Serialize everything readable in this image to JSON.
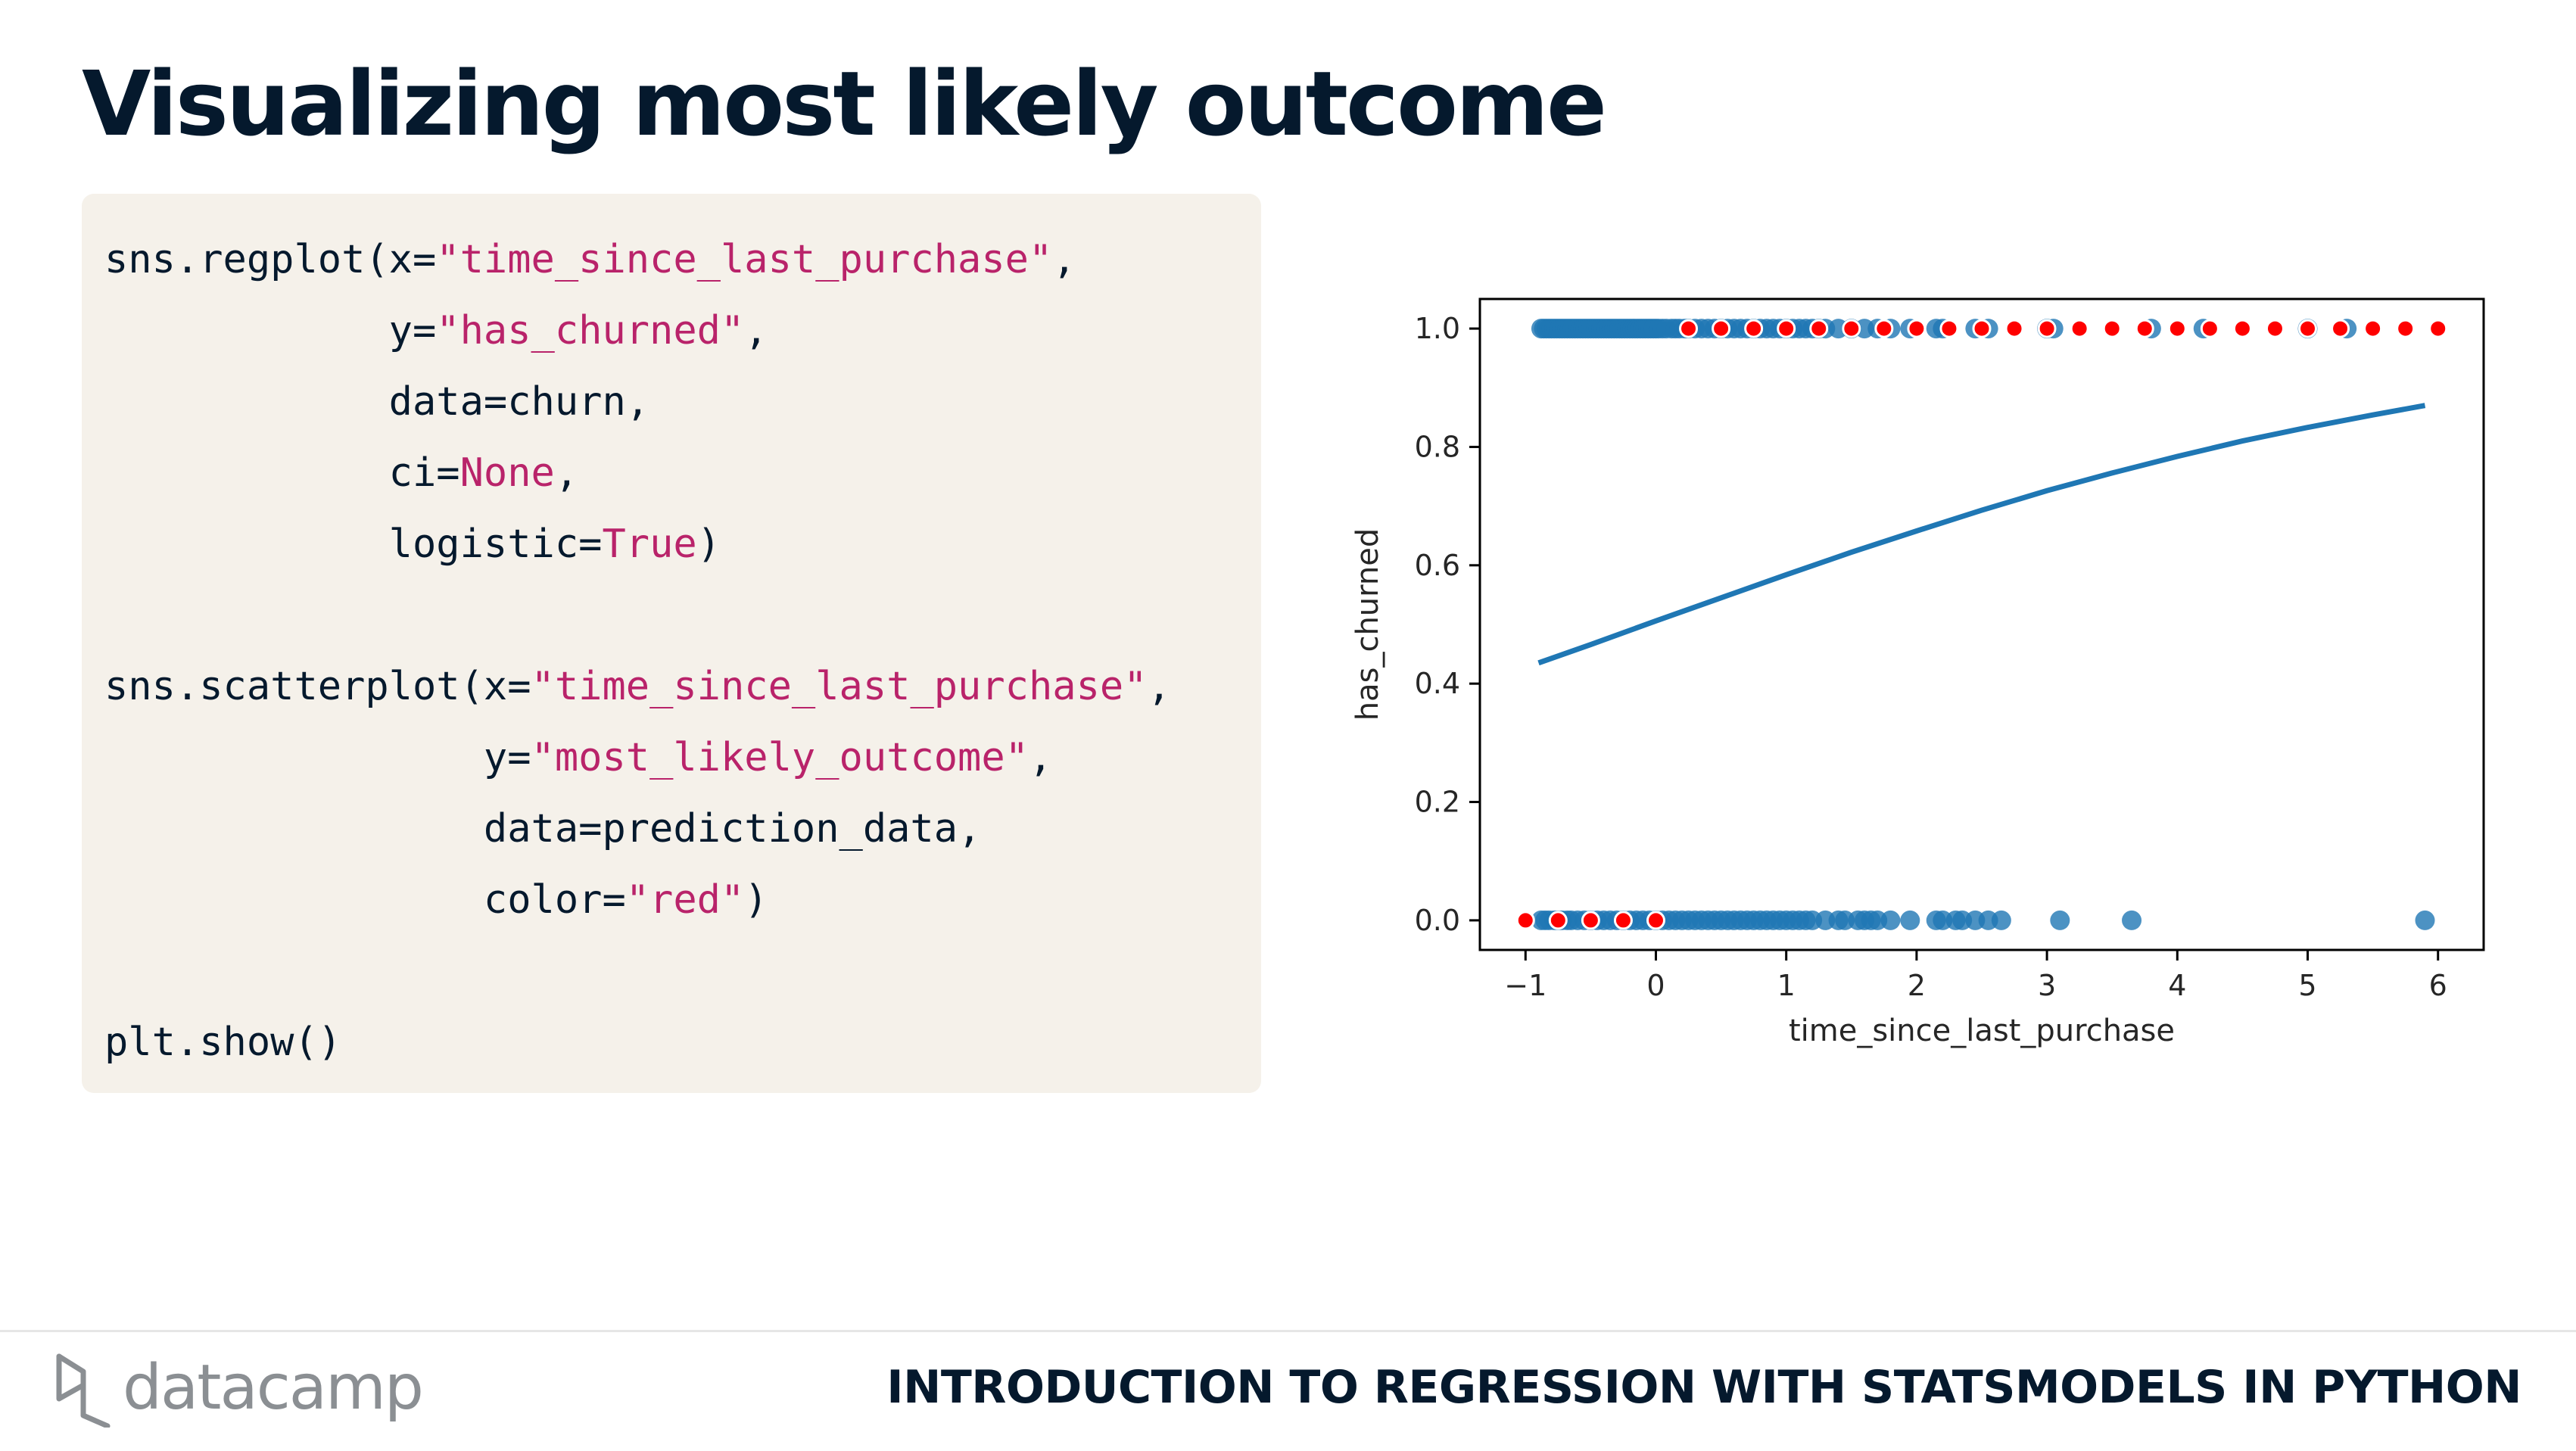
{
  "slide": {
    "title": "Visualizing most likely outcome",
    "footer_course": "INTRODUCTION TO REGRESSION WITH STATSMODELS IN PYTHON",
    "logo_text": "datacamp"
  },
  "code": {
    "l1a": "sns.regplot(x=",
    "l1s": "\"time_since_last_purchase\"",
    "l1b": ",",
    "l2a": "            y=",
    "l2s": "\"has_churned\"",
    "l2b": ",",
    "l3": "            data=churn,",
    "l4a": "            ci=",
    "l4k": "None",
    "l4b": ",",
    "l5a": "            logistic=",
    "l5k": "True",
    "l5b": ")",
    "l6a": "sns.scatterplot(x=",
    "l6s": "\"time_since_last_purchase\"",
    "l6b": ",",
    "l7a": "                y=",
    "l7s": "\"most_likely_outcome\"",
    "l7b": ",",
    "l8": "                data=prediction_data,",
    "l9a": "                color=",
    "l9s": "\"red\"",
    "l9b": ")",
    "l10": "plt.show()"
  },
  "colors": {
    "title": "#05192d",
    "string": "#b9236a",
    "code_bg": "#f5f1ea",
    "blue": "#1f77b4",
    "red": "#ff0000"
  },
  "chart_data": {
    "type": "scatter",
    "xlabel": "time_since_last_purchase",
    "ylabel": "has_churned",
    "xlim": [
      -1.35,
      6.35
    ],
    "ylim": [
      -0.05,
      1.05
    ],
    "xticks": [
      -1,
      0,
      1,
      2,
      3,
      4,
      5,
      6
    ],
    "yticks": [
      0.0,
      0.2,
      0.4,
      0.6,
      0.8,
      1.0
    ],
    "xtick_labels": [
      "−1",
      "0",
      "1",
      "2",
      "3",
      "4",
      "5",
      "6"
    ],
    "ytick_labels": [
      "0.0",
      "0.2",
      "0.4",
      "0.6",
      "0.8",
      "1.0"
    ],
    "grid": false,
    "churn_points_y1": [
      -0.88,
      -0.86,
      -0.84,
      -0.82,
      -0.8,
      -0.78,
      -0.76,
      -0.74,
      -0.72,
      -0.7,
      -0.68,
      -0.66,
      -0.64,
      -0.62,
      -0.6,
      -0.58,
      -0.56,
      -0.54,
      -0.52,
      -0.5,
      -0.48,
      -0.46,
      -0.44,
      -0.42,
      -0.4,
      -0.38,
      -0.36,
      -0.34,
      -0.32,
      -0.3,
      -0.28,
      -0.26,
      -0.24,
      -0.22,
      -0.2,
      -0.18,
      -0.16,
      -0.14,
      -0.12,
      -0.1,
      -0.08,
      -0.06,
      -0.04,
      -0.02,
      0.0,
      0.02,
      0.05,
      0.08,
      0.12,
      0.15,
      0.18,
      0.22,
      0.25,
      0.3,
      0.35,
      0.4,
      0.45,
      0.5,
      0.55,
      0.6,
      0.65,
      0.7,
      0.75,
      0.8,
      0.85,
      0.9,
      0.95,
      1.0,
      1.05,
      1.1,
      1.15,
      1.2,
      1.25,
      1.3,
      1.4,
      1.5,
      1.6,
      1.7,
      1.8,
      1.95,
      2.15,
      2.2,
      2.45,
      2.55,
      3.0,
      3.05,
      3.8,
      4.2,
      5.0,
      5.3
    ],
    "churn_points_y0": [
      -0.88,
      -0.85,
      -0.82,
      -0.78,
      -0.75,
      -0.72,
      -0.68,
      -0.65,
      -0.6,
      -0.55,
      -0.5,
      -0.45,
      -0.4,
      -0.35,
      -0.3,
      -0.25,
      -0.2,
      -0.15,
      -0.1,
      -0.05,
      0.0,
      0.05,
      0.1,
      0.15,
      0.2,
      0.25,
      0.3,
      0.35,
      0.4,
      0.45,
      0.5,
      0.55,
      0.6,
      0.65,
      0.7,
      0.75,
      0.8,
      0.85,
      0.9,
      0.95,
      1.0,
      1.05,
      1.1,
      1.15,
      1.2,
      1.3,
      1.4,
      1.45,
      1.55,
      1.6,
      1.65,
      1.7,
      1.8,
      1.95,
      2.15,
      2.2,
      2.3,
      2.35,
      2.45,
      2.55,
      2.65,
      3.1,
      3.65,
      5.9
    ],
    "predicted_y1": [
      0.25,
      0.5,
      0.75,
      1.0,
      1.25,
      1.5,
      1.75,
      2.0,
      2.25,
      2.5,
      2.75,
      3.0,
      3.25,
      3.5,
      3.75,
      4.0,
      4.25,
      4.5,
      4.75,
      5.0,
      5.25,
      5.5,
      5.75,
      6.0
    ],
    "predicted_y0": [
      -1.0,
      -0.75,
      -0.5,
      -0.25,
      0.0
    ],
    "logistic_curve": {
      "x": [
        -0.9,
        -0.5,
        0.0,
        0.5,
        1.0,
        1.5,
        2.0,
        2.5,
        3.0,
        3.5,
        4.0,
        4.5,
        5.0,
        5.5,
        5.9
      ],
      "y": [
        0.435,
        0.466,
        0.506,
        0.545,
        0.584,
        0.622,
        0.658,
        0.693,
        0.726,
        0.756,
        0.784,
        0.81,
        0.833,
        0.854,
        0.87
      ]
    }
  }
}
